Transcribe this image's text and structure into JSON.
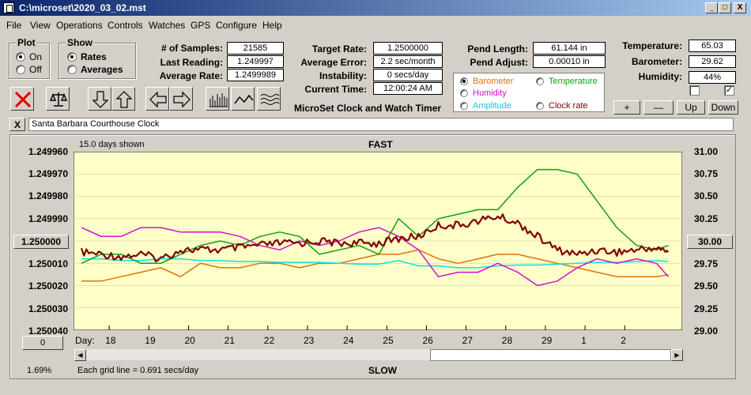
{
  "window": {
    "title": "C:\\microset\\2020_03_02.mst",
    "min": "_",
    "max": "□",
    "close": "X"
  },
  "menu": [
    "File",
    "View",
    "Operations",
    "Controls",
    "Watches",
    "GPS",
    "Configure",
    "Help"
  ],
  "plot_group": {
    "title": "Plot",
    "on": "On",
    "off": "Off",
    "selected": "On"
  },
  "show_group": {
    "title": "Show",
    "rates": "Rates",
    "averages": "Averages",
    "selected": "Rates"
  },
  "stats": {
    "samples_label": "# of Samples:",
    "samples": "21585",
    "last_label": "Last Reading:",
    "last": "1.249997",
    "avg_rate_label": "Average Rate:",
    "avg_rate": "1.2499989",
    "target_label": "Target Rate:",
    "target": "1.2500000",
    "avg_err_label": "Average Error:",
    "avg_err": "2.2 sec/month",
    "instab_label": "Instability:",
    "instab": "0 secs/day",
    "time_label": "Current Time:",
    "time": "12:00:24 AM",
    "pend_len_label": "Pend Length:",
    "pend_len": "61.144 in",
    "pend_adj_label": "Pend Adjust:",
    "pend_adj": "0.00010 in",
    "temp_label": "Temperature:",
    "temp": "65.03",
    "baro_label": "Barometer:",
    "baro": "29.62",
    "hum_label": "Humidity:",
    "hum": "44%"
  },
  "app_caption": "MicroSet Clock and Watch Timer",
  "plot_select": {
    "barometer": "Barometer",
    "temperature": "Temperature",
    "humidity": "Humidity",
    "amplitude": "Amplitude",
    "clock_rate": "Clock rate",
    "selected": "Barometer",
    "colors": {
      "barometer": "#e07010",
      "temperature": "#10a010",
      "humidity": "#d010d0",
      "amplitude": "#10e0e0",
      "clock_rate": "#800000"
    }
  },
  "right_buttons": {
    "plus": "+",
    "minus": "—",
    "up": "Up",
    "down": "Down",
    "check2": "✓"
  },
  "record_name": "Santa Barbara Courthouse Clock",
  "close_record": "X",
  "chart": {
    "days_shown": "15.0 days shown",
    "top_label": "FAST",
    "bottom_label": "SLOW",
    "left_ticks": [
      "1.249960",
      "1.249970",
      "1.249980",
      "1.249990",
      "1.250000",
      "1.250010",
      "1.250020",
      "1.250030",
      "1.250040"
    ],
    "right_ticks": [
      "31.00",
      "30.75",
      "30.50",
      "30.25",
      "30.00",
      "29.75",
      "29.50",
      "29.25",
      "29.00"
    ],
    "left_center_button": "1.250000",
    "right_center_button": "30.00",
    "offset_button": "0",
    "day_label": "Day:",
    "days": [
      "18",
      "19",
      "20",
      "21",
      "22",
      "23",
      "24",
      "25",
      "26",
      "27",
      "28",
      "29",
      "1",
      "2"
    ],
    "percent": "1.69%",
    "grid_note": "Each grid line = 0.691 secs/day"
  },
  "chart_data": {
    "type": "line",
    "x_label": "Day",
    "left_axis": {
      "ylim": [
        1.25004,
        1.24996
      ],
      "inverted": true
    },
    "right_axis": {
      "ylim": [
        29.0,
        31.0
      ]
    },
    "x": [
      17.3,
      17.8,
      18.3,
      18.8,
      19.3,
      19.8,
      20.3,
      20.8,
      21.3,
      21.8,
      22.3,
      22.8,
      23.3,
      23.8,
      24.3,
      24.8,
      25.3,
      25.8,
      26.3,
      26.8,
      27.3,
      27.8,
      28.3,
      28.8,
      29.3,
      29.8,
      30.3,
      30.8,
      31.3,
      31.8,
      32.1
    ],
    "series": [
      {
        "name": "Clock rate",
        "axis": "left",
        "color": "#800000",
        "values": [
          1.250005,
          1.250006,
          1.250007,
          1.250006,
          1.250008,
          1.250004,
          1.250004,
          1.250004,
          1.250003,
          1.250002,
          1.250001,
          1.250001,
          1.25,
          1.250001,
          1.250001,
          1.250001,
          1.249999,
          1.249998,
          1.249993,
          1.249993,
          1.249991,
          1.249989,
          1.249992,
          1.249998,
          1.250004,
          1.250006,
          1.250004,
          1.250005,
          1.250004,
          1.250003,
          1.250005
        ]
      },
      {
        "name": "Temperature",
        "axis": "right",
        "color": "#10a010",
        "values": [
          29.75,
          29.85,
          29.85,
          29.75,
          29.75,
          29.85,
          29.95,
          30.0,
          29.95,
          30.05,
          30.1,
          30.05,
          29.85,
          29.9,
          29.95,
          29.85,
          30.25,
          30.05,
          30.25,
          30.3,
          30.35,
          30.35,
          30.6,
          30.8,
          30.8,
          30.75,
          30.45,
          30.15,
          29.95,
          29.9,
          29.95
        ]
      },
      {
        "name": "Humidity",
        "axis": "right",
        "color": "#d010d0",
        "values": [
          30.15,
          30.05,
          30.05,
          30.15,
          30.15,
          30.1,
          30.1,
          30.1,
          30.05,
          29.95,
          29.9,
          30.0,
          29.95,
          30.0,
          30.1,
          30.15,
          30.05,
          29.9,
          29.6,
          29.65,
          29.65,
          29.75,
          29.65,
          29.5,
          29.55,
          29.7,
          29.8,
          29.75,
          29.8,
          29.75,
          29.6
        ]
      },
      {
        "name": "Barometer",
        "axis": "right",
        "color": "#e07010",
        "values": [
          29.55,
          29.55,
          29.6,
          29.65,
          29.7,
          29.6,
          29.75,
          29.7,
          29.7,
          29.75,
          29.75,
          29.7,
          29.75,
          29.75,
          29.8,
          29.85,
          29.85,
          29.9,
          29.8,
          29.75,
          29.8,
          29.85,
          29.85,
          29.8,
          29.75,
          29.7,
          29.65,
          29.6,
          29.6,
          29.6,
          29.62
        ]
      },
      {
        "name": "Amplitude",
        "axis": "right",
        "color": "#10e0e0",
        "values": [
          29.8,
          29.8,
          29.78,
          29.78,
          29.8,
          29.8,
          29.78,
          29.78,
          29.77,
          29.77,
          29.76,
          29.76,
          29.76,
          29.75,
          29.74,
          29.74,
          29.78,
          29.72,
          29.72,
          29.7,
          29.7,
          29.72,
          29.73,
          29.73,
          29.74,
          29.75,
          29.76,
          29.76,
          29.77,
          29.78,
          29.77
        ]
      }
    ]
  }
}
